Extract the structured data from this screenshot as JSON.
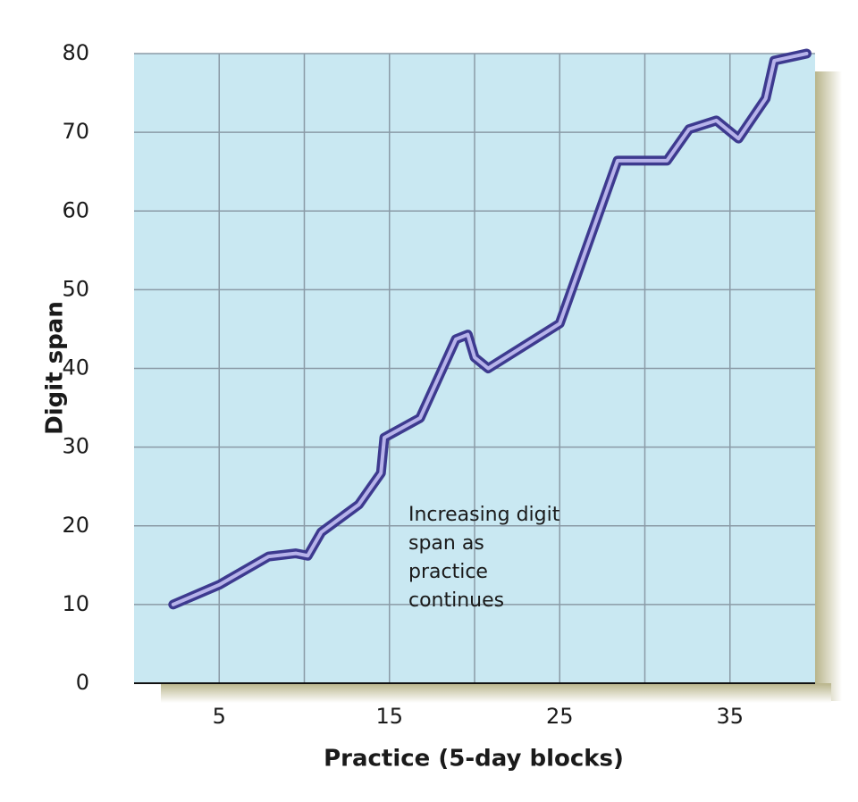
{
  "chart_data": {
    "type": "line",
    "x_label": "Practice (5-day blocks)",
    "y_label": "Digit span",
    "annotation": [
      "Increasing digit",
      "span as",
      "practice",
      "continues"
    ],
    "xlim": [
      0,
      40
    ],
    "ylim": [
      0,
      80
    ],
    "xticks": [
      5,
      15,
      25,
      35
    ],
    "xgrid": [
      5,
      10,
      15,
      20,
      25,
      30,
      35
    ],
    "yticks": [
      0,
      10,
      20,
      30,
      40,
      50,
      60,
      70,
      80
    ],
    "grid": true,
    "background": "#c9e8f2",
    "series": [
      {
        "color": "#3d3a8f",
        "x": [
          2.3,
          5,
          7.9,
          9.5,
          10.2,
          11,
          13.2,
          14.5,
          14.7,
          16.8,
          18.9,
          19.6,
          20,
          20.8,
          25,
          28.4,
          31.3,
          32.6,
          34.2,
          35.5,
          37.1,
          37.6,
          39.5
        ],
        "values": [
          10,
          12.5,
          16.1,
          16.5,
          16.2,
          19.2,
          22.7,
          26.7,
          31.2,
          33.7,
          43.7,
          44.3,
          41.4,
          40,
          45.7,
          66.4,
          66.4,
          70.4,
          71.5,
          69.2,
          74.3,
          79.1,
          80
        ]
      }
    ]
  }
}
